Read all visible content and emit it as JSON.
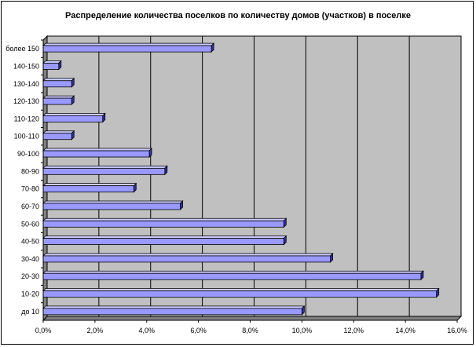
{
  "chart_data": {
    "type": "bar",
    "orientation": "horizontal",
    "title": "Распределение количества поселков по количеству домов (участков) в поселке",
    "xlabel": "",
    "ylabel": "",
    "categories": [
      "до 10",
      "10-20",
      "20-30",
      "30-40",
      "40-50",
      "50-60",
      "60-70",
      "70-80",
      "80-90",
      "90-100",
      "100-110",
      "110-120",
      "120-130",
      "130-140",
      "140-150",
      "более 150"
    ],
    "values": [
      10.0,
      15.2,
      14.6,
      11.1,
      9.3,
      9.3,
      5.3,
      3.5,
      4.7,
      4.1,
      1.1,
      2.3,
      1.1,
      1.1,
      0.6,
      6.5
    ],
    "xlim": [
      0,
      16
    ],
    "x_ticks": [
      "0,0%",
      "2,0%",
      "4,0%",
      "6,0%",
      "8,0%",
      "10,0%",
      "12,0%",
      "14,0%",
      "16,0%"
    ],
    "grid": true,
    "legend": "none",
    "colors": {
      "plot_area": "#c0c0c0",
      "bar_front": "#9999ff",
      "bar_top": "#ccccff",
      "bar_side": "#333399",
      "gridline": "#000000",
      "wall": "#808080"
    }
  }
}
